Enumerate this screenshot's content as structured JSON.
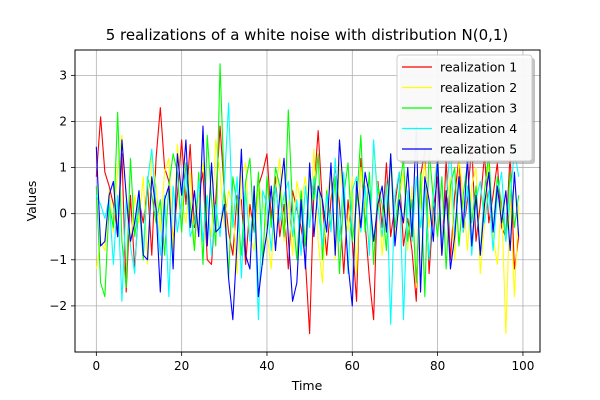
{
  "chart_data": {
    "type": "line",
    "title": "5 realizations of a white noise with distribution N(0,1)",
    "xlabel": "Time",
    "ylabel": "Values",
    "xlim": [
      -5,
      104
    ],
    "ylim": [
      -3.0,
      3.55
    ],
    "xticks": [
      0,
      20,
      40,
      60,
      80,
      100
    ],
    "yticks": [
      -2,
      -1,
      0,
      1,
      2,
      3
    ],
    "xtick_labels": [
      "0",
      "20",
      "40",
      "60",
      "80",
      "100"
    ],
    "ytick_labels": [
      "−2",
      "−1",
      "0",
      "1",
      "2",
      "3"
    ],
    "grid": true,
    "legend_position": "top-right",
    "x": [
      0,
      1,
      2,
      3,
      4,
      5,
      6,
      7,
      8,
      9,
      10,
      11,
      12,
      13,
      14,
      15,
      16,
      17,
      18,
      19,
      20,
      21,
      22,
      23,
      24,
      25,
      26,
      27,
      28,
      29,
      30,
      31,
      32,
      33,
      34,
      35,
      36,
      37,
      38,
      39,
      40,
      41,
      42,
      43,
      44,
      45,
      46,
      47,
      48,
      49,
      50,
      51,
      52,
      53,
      54,
      55,
      56,
      57,
      58,
      59,
      60,
      61,
      62,
      63,
      64,
      65,
      66,
      67,
      68,
      69,
      70,
      71,
      72,
      73,
      74,
      75,
      76,
      77,
      78,
      79,
      80,
      81,
      82,
      83,
      84,
      85,
      86,
      87,
      88,
      89,
      90,
      91,
      92,
      93,
      94,
      95,
      96,
      97,
      98,
      99
    ],
    "series": [
      {
        "name": "realization 1",
        "color": "#ff0000",
        "values": [
          0.8,
          2.1,
          0.9,
          0.6,
          0.2,
          -0.5,
          1.3,
          -1.7,
          0.4,
          -1.2,
          0.3,
          -0.2,
          0.6,
          -0.9,
          1.2,
          2.3,
          1.0,
          0.7,
          -0.6,
          0.4,
          1.6,
          0.2,
          1.5,
          -0.3,
          0.4,
          0.9,
          -1.0,
          -1.1,
          0.3,
          1.9,
          0.5,
          -0.4,
          -0.9,
          0.4,
          0.3,
          -1.1,
          0.2,
          -0.4,
          0.6,
          0.9,
          1.3,
          -0.1,
          0.8,
          -0.5,
          0.2,
          -1.2,
          0.5,
          0.1,
          -0.3,
          -1.0,
          -2.6,
          0.5,
          1.8,
          0.2,
          -0.9,
          0.3,
          1.0,
          0.2,
          -1.3,
          0.3,
          -0.6,
          -1.9,
          1.2,
          -0.2,
          -1.4,
          -2.3,
          0.7,
          -0.3,
          1.1,
          -0.5,
          0.2,
          0.9,
          -0.7,
          -0.1,
          -0.8,
          -1.9,
          0.8,
          1.4,
          -1.3,
          0.1,
          0.8,
          -0.9,
          1.2,
          -1.0,
          0.4,
          1.2,
          -0.4,
          0.3,
          1.5,
          -0.6,
          0.2,
          1.3,
          -0.2,
          0.4,
          1.1,
          -0.3,
          -0.5,
          1.3,
          -1.2,
          -0.5
        ]
      },
      {
        "name": "realization 2",
        "color": "#ffff00",
        "values": [
          -1.2,
          -0.6,
          -0.8,
          0.5,
          -0.4,
          1.0,
          1.7,
          0.3,
          -0.7,
          0.4,
          -0.2,
          0.8,
          -1.1,
          1.3,
          0.6,
          -0.4,
          0.9,
          1.2,
          -0.8,
          1.5,
          0.3,
          -0.2,
          0.9,
          -0.8,
          0.4,
          1.1,
          0.1,
          -0.5,
          1.6,
          0.9,
          -0.3,
          0.5,
          0.2,
          -1.3,
          0.8,
          1.1,
          -0.5,
          -0.8,
          0.6,
          0.3,
          -0.4,
          -1.2,
          0.5,
          1.2,
          -0.6,
          0.3,
          -0.9,
          0.7,
          0.2,
          0.8,
          -0.3,
          1.4,
          -0.6,
          -1.5,
          0.4,
          0.9,
          -1.0,
          1.1,
          0.3,
          -0.4,
          0.8,
          -1.3,
          1.0,
          0.2,
          -0.7,
          1.4,
          0.5,
          -0.9,
          0.2,
          1.2,
          -0.5,
          0.3,
          0.9,
          -0.8,
          0.6,
          -1.6,
          0.4,
          1.1,
          -0.3,
          0.5,
          1.3,
          -0.6,
          0.2,
          0.8,
          -1.0,
          1.2,
          0.4,
          -0.8,
          0.6,
          1.0,
          -1.3,
          -0.2,
          1.2,
          -0.5,
          -1.1,
          0.3,
          -2.6,
          0.4,
          -1.8,
          0.2
        ]
      },
      {
        "name": "realization 3",
        "color": "#00ff00",
        "values": [
          0.6,
          -1.5,
          -1.8,
          0.2,
          -0.3,
          2.2,
          -0.6,
          -1.6,
          1.2,
          -0.5,
          0.3,
          -1.0,
          0.8,
          0.4,
          -0.2,
          0.3,
          -0.9,
          0.6,
          1.3,
          0.9,
          -0.4,
          1.1,
          0.2,
          -0.8,
          0.9,
          -1.1,
          1.7,
          0.3,
          -0.7,
          3.25,
          0.5,
          -1.4,
          0.8,
          0.2,
          -0.9,
          0.7,
          1.2,
          -0.4,
          0.9,
          -1.1,
          0.8,
          -0.3,
          1.0,
          0.6,
          -0.5,
          2.25,
          0.1,
          -1.0,
          0.5,
          -0.7,
          0.9,
          0.3,
          1.3,
          -1.0,
          0.5,
          -0.3,
          0.8,
          -1.3,
          0.4,
          1.1,
          -0.6,
          0.2,
          1.7,
          -0.4,
          0.9,
          -1.1,
          0.6,
          0.2,
          -0.8,
          1.3,
          -0.3,
          0.5,
          1.2,
          -0.6,
          0.3,
          -1.5,
          0.9,
          -1.8,
          1.4,
          0.3,
          -0.5,
          0.8,
          -1.2,
          0.6,
          1.0,
          -0.7,
          0.4,
          1.1,
          -0.2,
          0.6,
          -0.9,
          0.5,
          1.3,
          -0.4,
          0.8,
          0.2,
          -0.6,
          0.9,
          -0.3,
          0.4
        ]
      },
      {
        "name": "realization 4",
        "color": "#00ffff",
        "values": [
          0.4,
          0.2,
          -0.1,
          0.3,
          -1.1,
          0.4,
          -1.9,
          0.3,
          -0.7,
          -1.3,
          0.5,
          -0.8,
          0.7,
          1.4,
          0.2,
          -0.9,
          0.4,
          -1.8,
          0.6,
          -0.4,
          0.3,
          0.9,
          -0.5,
          -0.2,
          0.7,
          -0.6,
          0.4,
          -0.9,
          0.2,
          -0.5,
          0.6,
          2.4,
          -0.3,
          0.8,
          -1.4,
          0.5,
          -0.6,
          0.3,
          -2.3,
          0.5,
          0.2,
          -0.8,
          0.6,
          -0.2,
          0.4,
          0.7,
          -0.5,
          0.3,
          -0.9,
          0.6,
          -0.3,
          0.8,
          0.1,
          -0.7,
          0.4,
          -0.4,
          1.2,
          -0.6,
          0.9,
          -1.3,
          0.5,
          0.8,
          -0.4,
          0.6,
          -0.9,
          1.6,
          0.2,
          -0.5,
          0.7,
          -2.4,
          0.4,
          0.9,
          -2.3,
          0.5,
          -0.6,
          0.8,
          -0.3,
          0.6,
          -1.0,
          0.4,
          1.2,
          -0.7,
          0.3,
          1.5,
          -0.5,
          0.8,
          -0.4,
          0.6,
          -0.9,
          0.3,
          0.7,
          -0.2,
          0.5,
          -0.8,
          0.4,
          0.9,
          -0.6,
          0.3,
          1.4,
          0.8
        ]
      },
      {
        "name": "realization 5",
        "color": "#0000ff",
        "values": [
          1.45,
          -0.7,
          -0.6,
          0.4,
          0.7,
          -0.5,
          1.6,
          0.4,
          -0.6,
          -0.2,
          0.5,
          -0.9,
          -1.0,
          0.8,
          0.1,
          -1.7,
          0.3,
          0.6,
          -1.2,
          1.3,
          0.4,
          1.6,
          -0.3,
          0.5,
          -0.5,
          1.9,
          -0.7,
          1.1,
          -0.4,
          -0.3,
          0.2,
          -1.4,
          -2.3,
          -0.6,
          1.4,
          -0.9,
          -1.2,
          0.6,
          -1.8,
          -1.0,
          -0.4,
          0.6,
          -0.8,
          0.4,
          1.2,
          -0.5,
          -1.9,
          -1.5,
          0.3,
          -1.2,
          1.1,
          -0.5,
          0.6,
          0.3,
          -0.4,
          1.1,
          -0.9,
          1.6,
          0.4,
          -1.1,
          -2.0,
          0.7,
          -0.3,
          0.9,
          0.4,
          -0.6,
          0.2,
          0.6,
          -0.4,
          1.3,
          -0.7,
          0.3,
          -0.2,
          1.0,
          -0.5,
          1.9,
          -1.7,
          0.8,
          0.3,
          -0.6,
          1.2,
          -0.9,
          0.5,
          -1.2,
          -0.5,
          0.8,
          -0.3,
          1.2,
          -0.7,
          0.4,
          -0.9,
          0.2,
          0.9,
          -0.4,
          0.6,
          -0.2,
          0.5,
          -0.8,
          0.9,
          -0.5
        ]
      }
    ]
  }
}
